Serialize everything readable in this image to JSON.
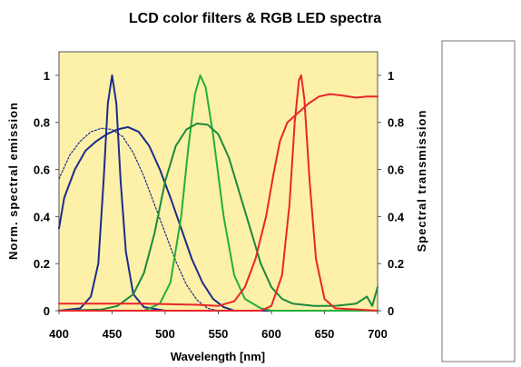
{
  "chart_data": {
    "type": "line",
    "title": "LCD color filters & RGB LED spectra",
    "xlabel": "Wavelength [nm]",
    "ylabel_left": "Norm. spectral emission",
    "ylabel_right": "Spectral transmission",
    "xlim": [
      400,
      700
    ],
    "ylim": [
      0,
      1.1
    ],
    "x_ticks": [
      "400",
      "450",
      "500",
      "550",
      "600",
      "650",
      "700"
    ],
    "y_ticks": [
      "0",
      "0.2",
      "0.4",
      "0.6",
      "0.8",
      "1"
    ],
    "y_ticks_right": [
      "0",
      "0.2",
      "0.4",
      "0.6",
      "0.8",
      "1"
    ],
    "grid": false,
    "background_color": "#fdf0a8",
    "series": [
      {
        "color": "#1c2c8c",
        "role": "LED emission",
        "points": [
          [
            400,
            0.0
          ],
          [
            420,
            0.01
          ],
          [
            430,
            0.06
          ],
          [
            437,
            0.2
          ],
          [
            442,
            0.55
          ],
          [
            446,
            0.88
          ],
          [
            450,
            1.0
          ],
          [
            454,
            0.88
          ],
          [
            458,
            0.55
          ],
          [
            463,
            0.25
          ],
          [
            470,
            0.07
          ],
          [
            480,
            0.015
          ],
          [
            500,
            0.0
          ],
          [
            700,
            0.0
          ]
        ]
      },
      {
        "color": "#1c2c8c",
        "role": "filter transmission",
        "points": [
          [
            400,
            0.35
          ],
          [
            405,
            0.48
          ],
          [
            415,
            0.6
          ],
          [
            425,
            0.68
          ],
          [
            435,
            0.72
          ],
          [
            445,
            0.75
          ],
          [
            455,
            0.77
          ],
          [
            465,
            0.78
          ],
          [
            475,
            0.76
          ],
          [
            485,
            0.7
          ],
          [
            495,
            0.6
          ],
          [
            505,
            0.48
          ],
          [
            515,
            0.35
          ],
          [
            525,
            0.22
          ],
          [
            535,
            0.12
          ],
          [
            545,
            0.05
          ],
          [
            555,
            0.015
          ],
          [
            565,
            0.0
          ],
          [
            700,
            0.0
          ]
        ]
      },
      {
        "color": "#1c2c8c",
        "role": "filter transmission (dashed)",
        "points": [
          [
            400,
            0.56
          ],
          [
            410,
            0.66
          ],
          [
            420,
            0.72
          ],
          [
            430,
            0.76
          ],
          [
            440,
            0.775
          ],
          [
            450,
            0.77
          ],
          [
            460,
            0.74
          ],
          [
            470,
            0.67
          ],
          [
            480,
            0.57
          ],
          [
            490,
            0.45
          ],
          [
            500,
            0.33
          ],
          [
            510,
            0.21
          ],
          [
            520,
            0.11
          ],
          [
            530,
            0.045
          ],
          [
            540,
            0.01
          ],
          [
            550,
            0.0
          ]
        ]
      },
      {
        "color": "#22b03a",
        "role": "LED emission",
        "points": [
          [
            400,
            0.0
          ],
          [
            480,
            0.0
          ],
          [
            495,
            0.03
          ],
          [
            505,
            0.12
          ],
          [
            515,
            0.4
          ],
          [
            522,
            0.7
          ],
          [
            528,
            0.92
          ],
          [
            533,
            1.0
          ],
          [
            538,
            0.95
          ],
          [
            545,
            0.75
          ],
          [
            555,
            0.4
          ],
          [
            565,
            0.15
          ],
          [
            575,
            0.05
          ],
          [
            590,
            0.01
          ],
          [
            600,
            0.0
          ],
          [
            700,
            0.0
          ]
        ]
      },
      {
        "color": "#1a8a3c",
        "role": "filter transmission",
        "points": [
          [
            400,
            0.0
          ],
          [
            440,
            0.005
          ],
          [
            455,
            0.02
          ],
          [
            470,
            0.07
          ],
          [
            480,
            0.16
          ],
          [
            490,
            0.33
          ],
          [
            500,
            0.55
          ],
          [
            510,
            0.7
          ],
          [
            520,
            0.77
          ],
          [
            530,
            0.795
          ],
          [
            540,
            0.79
          ],
          [
            550,
            0.75
          ],
          [
            560,
            0.65
          ],
          [
            570,
            0.5
          ],
          [
            580,
            0.35
          ],
          [
            590,
            0.2
          ],
          [
            600,
            0.1
          ],
          [
            610,
            0.05
          ],
          [
            620,
            0.03
          ],
          [
            640,
            0.02
          ],
          [
            660,
            0.02
          ],
          [
            680,
            0.03
          ],
          [
            690,
            0.06
          ],
          [
            695,
            0.02
          ],
          [
            700,
            0.1
          ]
        ]
      },
      {
        "color": "#e8262a",
        "role": "LED emission",
        "points": [
          [
            400,
            0.0
          ],
          [
            590,
            0.0
          ],
          [
            600,
            0.02
          ],
          [
            610,
            0.15
          ],
          [
            617,
            0.45
          ],
          [
            622,
            0.8
          ],
          [
            626,
            0.98
          ],
          [
            628,
            1.0
          ],
          [
            631,
            0.9
          ],
          [
            636,
            0.55
          ],
          [
            642,
            0.22
          ],
          [
            650,
            0.05
          ],
          [
            660,
            0.01
          ],
          [
            700,
            0.0
          ]
        ]
      },
      {
        "color": "#e8262a",
        "role": "filter transmission",
        "points": [
          [
            400,
            0.03
          ],
          [
            480,
            0.03
          ],
          [
            530,
            0.025
          ],
          [
            550,
            0.02
          ],
          [
            565,
            0.04
          ],
          [
            575,
            0.1
          ],
          [
            585,
            0.22
          ],
          [
            595,
            0.4
          ],
          [
            602,
            0.58
          ],
          [
            608,
            0.72
          ],
          [
            615,
            0.8
          ],
          [
            625,
            0.84
          ],
          [
            635,
            0.88
          ],
          [
            645,
            0.91
          ],
          [
            655,
            0.92
          ],
          [
            665,
            0.915
          ],
          [
            680,
            0.905
          ],
          [
            690,
            0.91
          ],
          [
            700,
            0.91
          ]
        ]
      }
    ]
  }
}
